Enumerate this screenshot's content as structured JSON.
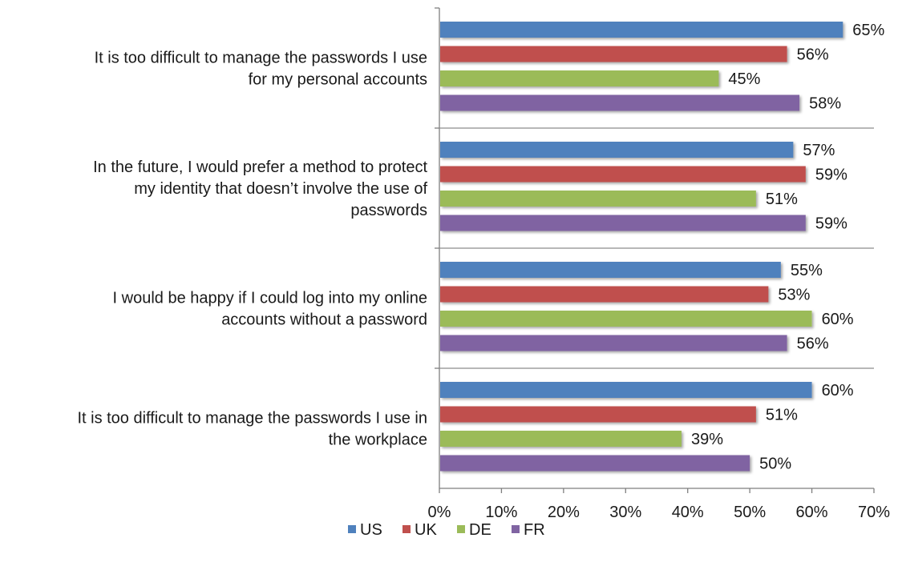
{
  "chart_data": {
    "type": "bar",
    "orientation": "horizontal",
    "categories": [
      [
        "It is too difficult to manage the passwords I use",
        "for my personal accounts"
      ],
      [
        "In the future, I would prefer a method to protect",
        "my identity that doesn’t involve the use of",
        "passwords"
      ],
      [
        "I would be happy if I could log into my online",
        "accounts without a password"
      ],
      [
        "It is too difficult to manage the passwords I use in",
        "the workplace"
      ]
    ],
    "series": [
      {
        "name": "US",
        "color": "#4F81BD",
        "values": [
          65,
          57,
          55,
          60
        ]
      },
      {
        "name": "UK",
        "color": "#C0504D",
        "values": [
          56,
          59,
          53,
          51
        ]
      },
      {
        "name": "DE",
        "color": "#9BBB59",
        "values": [
          45,
          51,
          60,
          39
        ]
      },
      {
        "name": "FR",
        "color": "#8064A2",
        "values": [
          58,
          59,
          56,
          50
        ]
      }
    ],
    "xlim": [
      0,
      70
    ],
    "ticks": [
      0,
      10,
      20,
      30,
      40,
      50,
      60,
      70
    ],
    "value_suffix": "%",
    "legend_position": "bottom",
    "grid": false
  }
}
